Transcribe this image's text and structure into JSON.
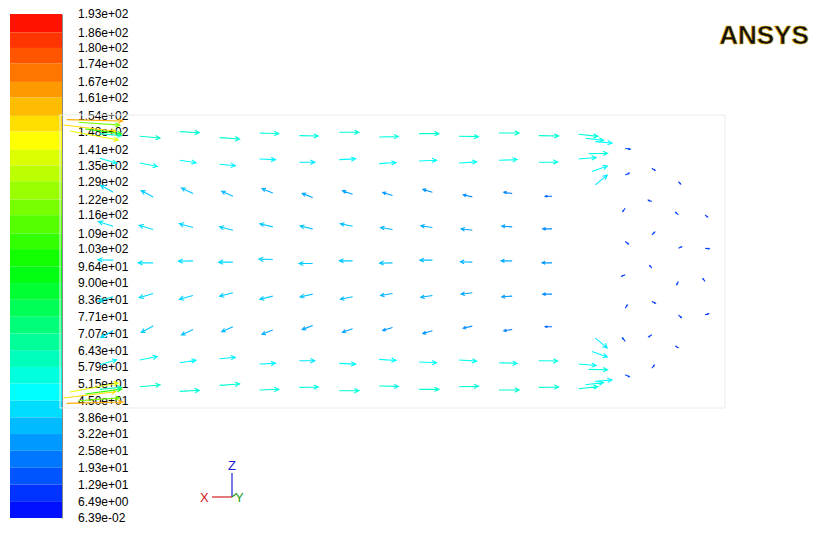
{
  "chart_data": {
    "type": "vector",
    "logo": "ANSYS",
    "axes_triad": [
      "X",
      "Y",
      "Z"
    ],
    "xlim": [
      0,
      100
    ],
    "ylim": [
      0,
      44
    ],
    "tick_labels": false,
    "colorbar": {
      "lim": [
        0.0639,
        193
      ],
      "ticks": [
        {
          "value": 193,
          "label": "1.93e+02"
        },
        {
          "value": 186,
          "label": "1.86e+02"
        },
        {
          "value": 180,
          "label": "1.80e+02"
        },
        {
          "value": 174,
          "label": "1.74e+02"
        },
        {
          "value": 167,
          "label": "1.67e+02"
        },
        {
          "value": 161,
          "label": "1.61e+02"
        },
        {
          "value": 154,
          "label": "1.54e+02"
        },
        {
          "value": 148,
          "label": "1.48e+02"
        },
        {
          "value": 141,
          "label": "1.41e+02"
        },
        {
          "value": 135,
          "label": "1.35e+02"
        },
        {
          "value": 129,
          "label": "1.29e+02"
        },
        {
          "value": 122,
          "label": "1.22e+02"
        },
        {
          "value": 116,
          "label": "1.16e+02"
        },
        {
          "value": 109,
          "label": "1.09e+02"
        },
        {
          "value": 103,
          "label": "1.03e+02"
        },
        {
          "value": 96.4,
          "label": "9.64e+01"
        },
        {
          "value": 90,
          "label": "9.00e+01"
        },
        {
          "value": 83.6,
          "label": "8.36e+01"
        },
        {
          "value": 77.1,
          "label": "7.71e+01"
        },
        {
          "value": 70.7,
          "label": "7.07e+01"
        },
        {
          "value": 64.3,
          "label": "6.43e+01"
        },
        {
          "value": 57.9,
          "label": "5.79e+01"
        },
        {
          "value": 51.5,
          "label": "5.15e+01"
        },
        {
          "value": 45,
          "label": "4.50e+01"
        },
        {
          "value": 38.6,
          "label": "3.86e+01"
        },
        {
          "value": 32.2,
          "label": "3.22e+01"
        },
        {
          "value": 25.8,
          "label": "2.58e+01"
        },
        {
          "value": 19.3,
          "label": "1.93e+01"
        },
        {
          "value": 12.9,
          "label": "1.29e+01"
        },
        {
          "value": 6.49,
          "label": "6.49e+00"
        },
        {
          "value": 0.0639,
          "label": "6.39e-02"
        }
      ]
    },
    "vectors": [
      [
        0.5,
        42.5,
        150,
        -18
      ],
      [
        1.5,
        41.6,
        138,
        -26
      ],
      [
        2.8,
        42.9,
        118,
        -8
      ],
      [
        1.0,
        43.3,
        160,
        -4
      ],
      [
        3.8,
        41.9,
        104,
        -14
      ],
      [
        0.5,
        1.5,
        150,
        18
      ],
      [
        1.5,
        2.4,
        138,
        26
      ],
      [
        2.8,
        1.1,
        118,
        8
      ],
      [
        1.0,
        0.7,
        160,
        4
      ],
      [
        3.8,
        2.1,
        104,
        14
      ],
      [
        6,
        41.2,
        62,
        -6
      ],
      [
        12,
        40.8,
        58,
        -5
      ],
      [
        18,
        41.5,
        56,
        -3
      ],
      [
        24,
        40.6,
        57,
        -4
      ],
      [
        30,
        41.3,
        55,
        -2
      ],
      [
        36,
        40.9,
        54,
        -1
      ],
      [
        42,
        41.4,
        56,
        0
      ],
      [
        48,
        40.7,
        55,
        1
      ],
      [
        54,
        41.2,
        57,
        0
      ],
      [
        60,
        40.8,
        56,
        -1
      ],
      [
        66,
        41.3,
        58,
        0
      ],
      [
        72,
        40.9,
        57,
        -1
      ],
      [
        78,
        41.1,
        55,
        -6
      ],
      [
        6,
        2.8,
        62,
        6
      ],
      [
        12,
        3.2,
        58,
        5
      ],
      [
        18,
        2.5,
        56,
        3
      ],
      [
        24,
        3.4,
        57,
        4
      ],
      [
        30,
        2.7,
        55,
        2
      ],
      [
        36,
        3.1,
        54,
        1
      ],
      [
        42,
        2.6,
        56,
        0
      ],
      [
        48,
        3.3,
        55,
        -1
      ],
      [
        54,
        2.8,
        57,
        0
      ],
      [
        60,
        3.2,
        56,
        1
      ],
      [
        66,
        2.7,
        58,
        0
      ],
      [
        72,
        3.1,
        57,
        1
      ],
      [
        78,
        2.9,
        55,
        6
      ],
      [
        6,
        37.5,
        48,
        -14
      ],
      [
        12,
        36.8,
        50,
        -10
      ],
      [
        18,
        37.2,
        47,
        -7
      ],
      [
        24,
        36.6,
        45,
        -4
      ],
      [
        30,
        37.4,
        46,
        -2
      ],
      [
        36,
        36.9,
        44,
        0
      ],
      [
        42,
        37.3,
        47,
        2
      ],
      [
        48,
        36.7,
        48,
        3
      ],
      [
        54,
        37.1,
        50,
        2
      ],
      [
        60,
        36.8,
        51,
        3
      ],
      [
        66,
        37.2,
        52,
        2
      ],
      [
        72,
        36.9,
        54,
        1
      ],
      [
        78,
        37.4,
        50,
        4
      ],
      [
        6,
        6.5,
        48,
        14
      ],
      [
        12,
        7.2,
        50,
        10
      ],
      [
        18,
        6.8,
        47,
        7
      ],
      [
        24,
        7.4,
        45,
        4
      ],
      [
        30,
        6.6,
        46,
        2
      ],
      [
        36,
        7.1,
        44,
        0
      ],
      [
        42,
        6.7,
        47,
        -2
      ],
      [
        48,
        7.3,
        48,
        -3
      ],
      [
        54,
        6.9,
        50,
        -2
      ],
      [
        60,
        7.2,
        51,
        -3
      ],
      [
        66,
        6.8,
        52,
        -2
      ],
      [
        72,
        7.1,
        54,
        -1
      ],
      [
        78,
        6.6,
        50,
        -4
      ],
      [
        8,
        32.4,
        -36,
        20
      ],
      [
        14,
        31.7,
        -34,
        18
      ],
      [
        20,
        32.2,
        -33,
        16
      ],
      [
        26,
        31.8,
        -32,
        14
      ],
      [
        32,
        32.3,
        -31,
        12
      ],
      [
        38,
        31.6,
        -30,
        12
      ],
      [
        44,
        32.1,
        -29,
        10
      ],
      [
        50,
        31.9,
        -28,
        9
      ],
      [
        56,
        32.4,
        -27,
        8
      ],
      [
        62,
        31.7,
        -26,
        6
      ],
      [
        68,
        32.2,
        -24,
        4
      ],
      [
        74,
        31.8,
        -20,
        0
      ],
      [
        8,
        27.3,
        -42,
        13
      ],
      [
        14,
        26.8,
        -40,
        12
      ],
      [
        20,
        27.1,
        -39,
        11
      ],
      [
        26,
        26.7,
        -38,
        10
      ],
      [
        32,
        27.2,
        -37,
        9
      ],
      [
        38,
        26.9,
        -36,
        8
      ],
      [
        44,
        27.3,
        -35,
        7
      ],
      [
        50,
        26.8,
        -34,
        6
      ],
      [
        56,
        27.1,
        -33,
        5
      ],
      [
        62,
        26.7,
        -32,
        4
      ],
      [
        68,
        27.2,
        -30,
        2
      ],
      [
        74,
        26.9,
        -27,
        0
      ],
      [
        8,
        22.2,
        -44,
        1
      ],
      [
        14,
        21.8,
        -43,
        0
      ],
      [
        20,
        22.1,
        -42,
        -1
      ],
      [
        26,
        21.9,
        -41,
        0
      ],
      [
        32,
        22.3,
        -40,
        1
      ],
      [
        38,
        21.7,
        -39,
        0
      ],
      [
        44,
        22.1,
        -38,
        0
      ],
      [
        50,
        21.8,
        -37,
        -1
      ],
      [
        56,
        22.2,
        -36,
        0
      ],
      [
        62,
        21.9,
        -34,
        1
      ],
      [
        68,
        22.1,
        -32,
        0
      ],
      [
        74,
        21.8,
        -29,
        0
      ],
      [
        8,
        16.7,
        -42,
        -13
      ],
      [
        14,
        17.2,
        -40,
        -12
      ],
      [
        20,
        16.9,
        -39,
        -11
      ],
      [
        26,
        17.3,
        -38,
        -10
      ],
      [
        32,
        16.8,
        -37,
        -9
      ],
      [
        38,
        17.1,
        -36,
        -8
      ],
      [
        44,
        16.7,
        -35,
        -7
      ],
      [
        50,
        17.2,
        -34,
        -6
      ],
      [
        56,
        16.9,
        -33,
        -5
      ],
      [
        62,
        17.3,
        -32,
        -4
      ],
      [
        68,
        16.8,
        -30,
        -2
      ],
      [
        74,
        17.1,
        -27,
        0
      ],
      [
        8,
        11.6,
        -36,
        -20
      ],
      [
        14,
        12.3,
        -34,
        -18
      ],
      [
        20,
        11.8,
        -33,
        -16
      ],
      [
        26,
        12.2,
        -32,
        -14
      ],
      [
        32,
        11.7,
        -31,
        -12
      ],
      [
        38,
        12.4,
        -30,
        -12
      ],
      [
        44,
        11.9,
        -29,
        -10
      ],
      [
        50,
        12.1,
        -28,
        -9
      ],
      [
        56,
        11.6,
        -27,
        -8
      ],
      [
        62,
        12.3,
        -26,
        -6
      ],
      [
        68,
        11.8,
        -24,
        -4
      ],
      [
        74,
        12.2,
        -20,
        0
      ],
      [
        79,
        40.5,
        52,
        -6
      ],
      [
        79.5,
        38.2,
        54,
        1
      ],
      [
        80,
        35.5,
        44,
        16
      ],
      [
        80.5,
        33.5,
        34,
        28
      ],
      [
        80.5,
        40,
        48,
        -4
      ],
      [
        79,
        3.5,
        52,
        6
      ],
      [
        79.5,
        5.8,
        54,
        -1
      ],
      [
        80,
        8.5,
        44,
        -16
      ],
      [
        80.5,
        10.5,
        34,
        -28
      ],
      [
        80.5,
        4,
        48,
        4
      ],
      [
        85,
        5,
        12,
        -6
      ],
      [
        85,
        10,
        -8,
        10
      ],
      [
        85,
        15,
        6,
        9
      ],
      [
        85,
        20,
        -10,
        -4
      ],
      [
        85,
        25,
        9,
        -7
      ],
      [
        85,
        30,
        -7,
        -9
      ],
      [
        85,
        35,
        11,
        5
      ],
      [
        85,
        39,
        14,
        -3
      ],
      [
        89,
        6,
        7,
        8
      ],
      [
        89,
        11,
        -9,
        -6
      ],
      [
        89,
        16,
        10,
        -5
      ],
      [
        89,
        21,
        -6,
        7
      ],
      [
        89,
        26,
        8,
        8
      ],
      [
        89,
        31,
        -10,
        4
      ],
      [
        89,
        36,
        9,
        -6
      ],
      [
        93,
        9,
        -7,
        5
      ],
      [
        93,
        14,
        8,
        -8
      ],
      [
        93,
        19,
        -5,
        -9
      ],
      [
        93,
        24,
        9,
        4
      ],
      [
        93,
        29,
        -8,
        7
      ],
      [
        93,
        34,
        6,
        -7
      ],
      [
        97,
        14,
        10,
        3
      ],
      [
        97,
        19,
        -6,
        8
      ],
      [
        97,
        24,
        12,
        -2
      ],
      [
        97,
        29,
        7,
        -6
      ]
    ]
  }
}
